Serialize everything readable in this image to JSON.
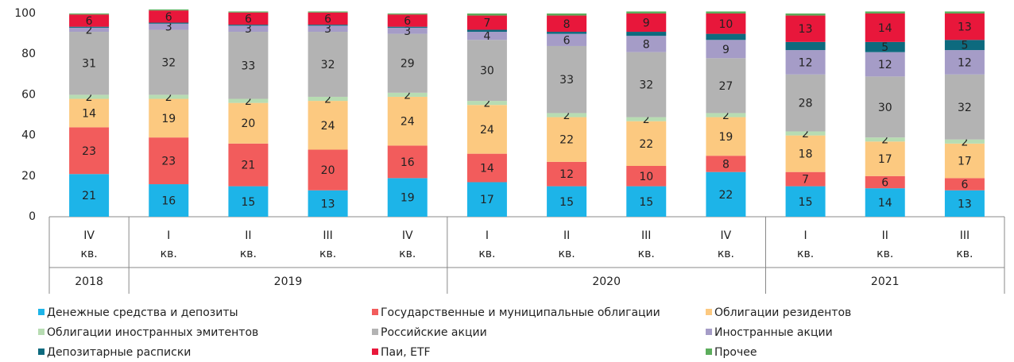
{
  "chart_data": {
    "type": "stacked_bar",
    "categories": [
      [
        "IV",
        "кв."
      ],
      [
        "I",
        "кв."
      ],
      [
        "II",
        "кв."
      ],
      [
        "III",
        "кв."
      ],
      [
        "IV",
        "кв."
      ],
      [
        "I",
        "кв."
      ],
      [
        "II",
        "кв."
      ],
      [
        "III",
        "кв."
      ],
      [
        "IV",
        "кв."
      ],
      [
        "I",
        "кв."
      ],
      [
        "II",
        "кв."
      ],
      [
        "III",
        "кв."
      ]
    ],
    "groups": [
      {
        "label": "2018",
        "count": 1
      },
      {
        "label": "2019",
        "count": 4
      },
      {
        "label": "2020",
        "count": 4
      },
      {
        "label": "2021",
        "count": 3
      }
    ],
    "ylim": [
      0,
      100
    ],
    "yticks": [
      0,
      20,
      40,
      60,
      80,
      100
    ],
    "series": [
      {
        "name": "Денежные средства и депозиты",
        "color": "#1db4e8",
        "values": [
          21,
          16,
          15,
          13,
          19,
          17,
          15,
          15,
          22,
          15,
          14,
          13
        ]
      },
      {
        "name": "Государственные и муниципальные облигации",
        "color": "#f25c5c",
        "values": [
          23,
          23,
          21,
          20,
          16,
          14,
          12,
          10,
          8,
          7,
          6,
          6
        ]
      },
      {
        "name": "Облигации резидентов",
        "color": "#fcc980",
        "values": [
          14,
          19,
          20,
          24,
          24,
          24,
          22,
          22,
          19,
          18,
          17,
          17
        ]
      },
      {
        "name": "Облигации иностранных эмитентов",
        "color": "#b7dcb2",
        "values": [
          2,
          2,
          2,
          2,
          2,
          2,
          2,
          2,
          2,
          2,
          2,
          2
        ]
      },
      {
        "name": "Российские акции",
        "color": "#b3b3b3",
        "values": [
          31,
          32,
          33,
          32,
          29,
          30,
          33,
          32,
          27,
          28,
          30,
          32
        ]
      },
      {
        "name": "Иностранные акции",
        "color": "#a59cc7",
        "values": [
          2,
          3,
          3,
          3,
          3,
          4,
          6,
          8,
          9,
          12,
          12,
          12
        ]
      },
      {
        "name": "Депозитарные расписки",
        "color": "#0d6a7e",
        "values": [
          0.5,
          0.5,
          0.5,
          0.5,
          0.5,
          1,
          1,
          2,
          3,
          4,
          5,
          5
        ],
        "value_labels": [
          null,
          null,
          null,
          null,
          null,
          null,
          null,
          null,
          null,
          null,
          "5",
          "5"
        ]
      },
      {
        "name": "Паи, ETF",
        "color": "#e8173b",
        "values": [
          6,
          6,
          6,
          6,
          6,
          7,
          8,
          9,
          10,
          13,
          14,
          13
        ]
      },
      {
        "name": "Прочее",
        "color": "#5cad5c",
        "values": [
          0.5,
          0.5,
          0.5,
          0.5,
          0.5,
          1,
          1,
          1,
          1,
          1,
          1,
          1
        ],
        "value_labels": [
          null,
          null,
          null,
          null,
          null,
          null,
          null,
          null,
          null,
          null,
          null,
          null
        ]
      }
    ],
    "legend": "bottom"
  }
}
